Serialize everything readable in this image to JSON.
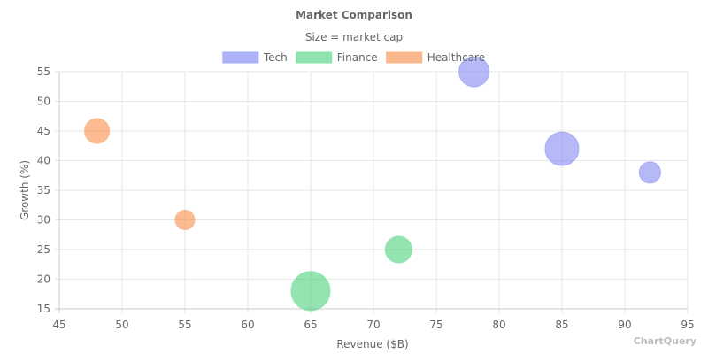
{
  "chart_data": {
    "type": "scatter",
    "subtype": "bubble",
    "title": "Market Comparison",
    "subtitle": "Size = market cap",
    "xlabel": "Revenue ($B)",
    "ylabel": "Growth (%)",
    "xlim": [
      45,
      95
    ],
    "ylim": [
      15,
      55
    ],
    "x_ticks": [
      45,
      50,
      55,
      60,
      65,
      70,
      75,
      80,
      85,
      90,
      95
    ],
    "y_ticks": [
      15,
      20,
      25,
      30,
      35,
      40,
      45,
      50,
      55
    ],
    "grid": true,
    "legend_position": "top-center",
    "series": [
      {
        "name": "Tech",
        "fill": "rgba(120,128,240,0.55)",
        "stroke": "#a5abf5",
        "legend_color": "#aeb2f6",
        "points": [
          {
            "x": 78,
            "y": 55,
            "size": 17
          },
          {
            "x": 85,
            "y": 42,
            "size": 19
          },
          {
            "x": 92,
            "y": 38,
            "size": 12
          }
        ]
      },
      {
        "name": "Finance",
        "fill": "rgba(75,210,125,0.6)",
        "stroke": "#8ee2ad",
        "legend_color": "#8fe3ae",
        "points": [
          {
            "x": 65,
            "y": 18,
            "size": 22
          },
          {
            "x": 72,
            "y": 25,
            "size": 15
          }
        ]
      },
      {
        "name": "Healthcare",
        "fill": "rgba(250,150,85,0.65)",
        "stroke": "#f8b98f",
        "legend_color": "#f9b98d",
        "points": [
          {
            "x": 48,
            "y": 45,
            "size": 14
          },
          {
            "x": 55,
            "y": 30,
            "size": 11
          }
        ]
      }
    ]
  },
  "watermark": "ChartQuery"
}
